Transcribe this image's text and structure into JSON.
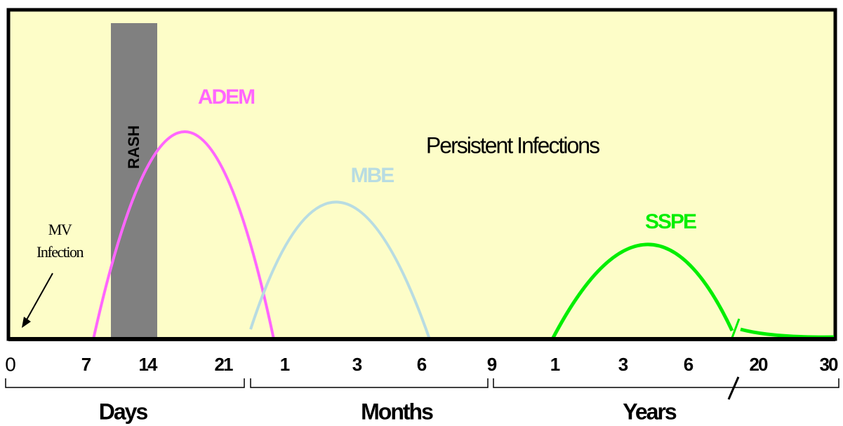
{
  "labels": {
    "rash": "RASH",
    "adem": "ADEM",
    "mbe": "MBE",
    "sspe": "SSPE",
    "persistent": "Persistent Infections",
    "mv_infection": [
      "MV",
      "Infection"
    ]
  },
  "ticks": [
    "0",
    "7",
    "14",
    "21",
    "1",
    "3",
    "6",
    "9",
    "1",
    "3",
    "6",
    "20",
    "30"
  ],
  "groups": [
    "Days",
    "Months",
    "Years"
  ]
}
